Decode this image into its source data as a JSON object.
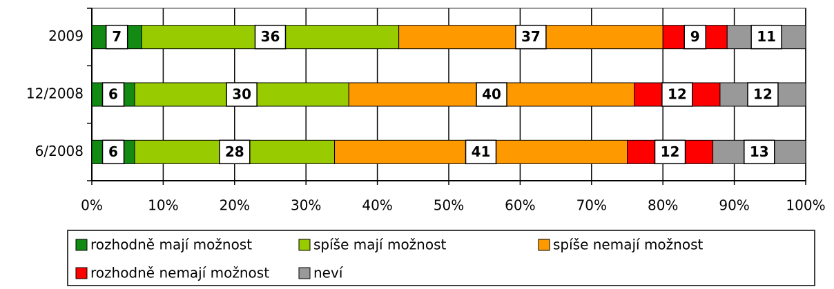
{
  "chart_data": {
    "type": "stacked-bar-horizontal",
    "categories": [
      "2009",
      "12/2008",
      "6/2008"
    ],
    "series": [
      {
        "name": "rozhodně mají možnost",
        "color": "#138a13",
        "values": [
          7,
          6,
          6
        ]
      },
      {
        "name": "spíše mají možnost",
        "color": "#99cc00",
        "values": [
          36,
          30,
          28
        ]
      },
      {
        "name": "spíše nemají možnost",
        "color": "#ff9900",
        "values": [
          37,
          40,
          41
        ]
      },
      {
        "name": "rozhodně nemají možnost",
        "color": "#ff0000",
        "values": [
          9,
          12,
          12
        ]
      },
      {
        "name": "neví",
        "color": "#999999",
        "values": [
          11,
          12,
          13
        ]
      }
    ],
    "xlim": [
      0,
      100
    ],
    "xticks": [
      {
        "value": 0,
        "label": "0%"
      },
      {
        "value": 10,
        "label": "10%"
      },
      {
        "value": 20,
        "label": "20%"
      },
      {
        "value": 30,
        "label": "30%"
      },
      {
        "value": 40,
        "label": "40%"
      },
      {
        "value": 50,
        "label": "50%"
      },
      {
        "value": 60,
        "label": "60%"
      },
      {
        "value": 70,
        "label": "70%"
      },
      {
        "value": 80,
        "label": "80%"
      },
      {
        "value": 90,
        "label": "90%"
      },
      {
        "value": 100,
        "label": "100%"
      }
    ],
    "grid": true,
    "legend": "bottom"
  }
}
